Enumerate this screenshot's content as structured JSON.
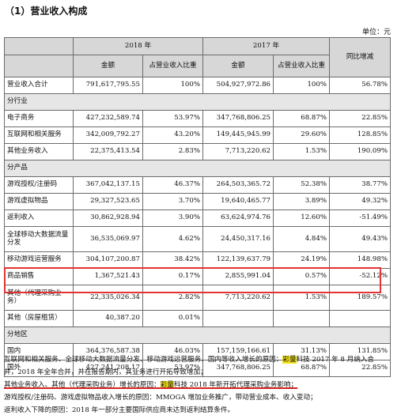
{
  "heading": "（1）营业收入构成",
  "unit": "单位：元",
  "header": {
    "year1": "2018 年",
    "year2": "2017 年",
    "yoy": "同比增减",
    "amount1": "金额",
    "ratio1": "占营业收入比重",
    "amount2": "金额",
    "ratio2": "占营业收入比重"
  },
  "total": {
    "label": "营业收入合计",
    "a1": "791,617,795.55",
    "r1": "100%",
    "a2": "504,927,972.86",
    "r2": "100%",
    "yoy": "56.78%"
  },
  "section_industry": "分行业",
  "industry": [
    {
      "label": "电子商务",
      "a1": "427,232,589.74",
      "r1": "53.97%",
      "a2": "347,768,806.25",
      "r2": "68.87%",
      "yoy": "22.85%"
    },
    {
      "label": "互联网和相关服务",
      "a1": "342,009,792.27",
      "r1": "43.20%",
      "a2": "149,445,945.99",
      "r2": "29.60%",
      "yoy": "128.85%"
    },
    {
      "label": "其他业务收入",
      "a1": "22,375,413.54",
      "r1": "2.83%",
      "a2": "7,713,220.62",
      "r2": "1.53%",
      "yoy": "190.09%"
    }
  ],
  "section_product": "分产品",
  "product": [
    {
      "label": "游戏授权/注册码",
      "a1": "367,042,137.15",
      "r1": "46.37%",
      "a2": "264,503,365.72",
      "r2": "52.38%",
      "yoy": "38.77%"
    },
    {
      "label": "游戏虚拟物品",
      "a1": "29,327,523.65",
      "r1": "3.70%",
      "a2": "19,640,465.77",
      "r2": "3.89%",
      "yoy": "49.32%"
    },
    {
      "label": "返利收入",
      "a1": "30,862,928.94",
      "r1": "3.90%",
      "a2": "63,624,974.76",
      "r2": "12.60%",
      "yoy": "-51.49%"
    },
    {
      "label": "全球移动大数据流量分发",
      "a1": "36,535,069.97",
      "r1": "4.62%",
      "a2": "24,450,317.16",
      "r2": "4.84%",
      "yoy": "49.43%"
    },
    {
      "label": "移动游戏运营服务",
      "a1": "304,107,200.87",
      "r1": "38.42%",
      "a2": "122,139,637.79",
      "r2": "24.19%",
      "yoy": "148.98%"
    },
    {
      "label": "商品销售",
      "a1": "1,367,521.43",
      "r1": "0.17%",
      "a2": "2,855,991.04",
      "r2": "0.57%",
      "yoy": "-52.12%"
    },
    {
      "label": "其他（代理采购业务）",
      "a1": "22,335,026.34",
      "r1": "2.82%",
      "a2": "7,713,220.62",
      "r2": "1.53%",
      "yoy": "189.57%"
    },
    {
      "label": "其他（房屋租赁）",
      "a1": "40,387.20",
      "r1": "0.01%",
      "a2": "",
      "r2": "",
      "yoy": ""
    }
  ],
  "section_region": "分地区",
  "region": [
    {
      "label": "国内",
      "a1": "364,376,587.38",
      "r1": "46.03%",
      "a2": "157,159,166.61",
      "r2": "31.13%",
      "yoy": "131.85%"
    },
    {
      "label": "国外",
      "a1": "427,241,208.17",
      "r1": "53.97%",
      "a2": "347,768,806.25",
      "r2": "68.87%",
      "yoy": "22.85%"
    }
  ],
  "notes": {
    "l1_a": "互联网和相关服务、全球移动大数据流量分发、移动游戏运营服务、国内等收入增长的原因：",
    "l1_mark": "彩量",
    "l1_b": "科技 2017 年 8 月纳入合",
    "l2": "并，2018 年全年合并，并在报告期内，其业务进行开拓导致增加；",
    "l3_a": "其他业务收入、其他（代理采购业务）增长的原因：",
    "l3_mark": "彩量",
    "l3_b": "科技 2018 年新开拓代理采购业务影响；",
    "l4": "游戏授权/注册码、游戏虚拟物品收入增长的原因：MMOGA 增加业务推广，带动营业成本、收入变动；",
    "l5": "返利收入下降的原因：2018 年一部分主要国际供应商未达到返利结算条件。"
  }
}
